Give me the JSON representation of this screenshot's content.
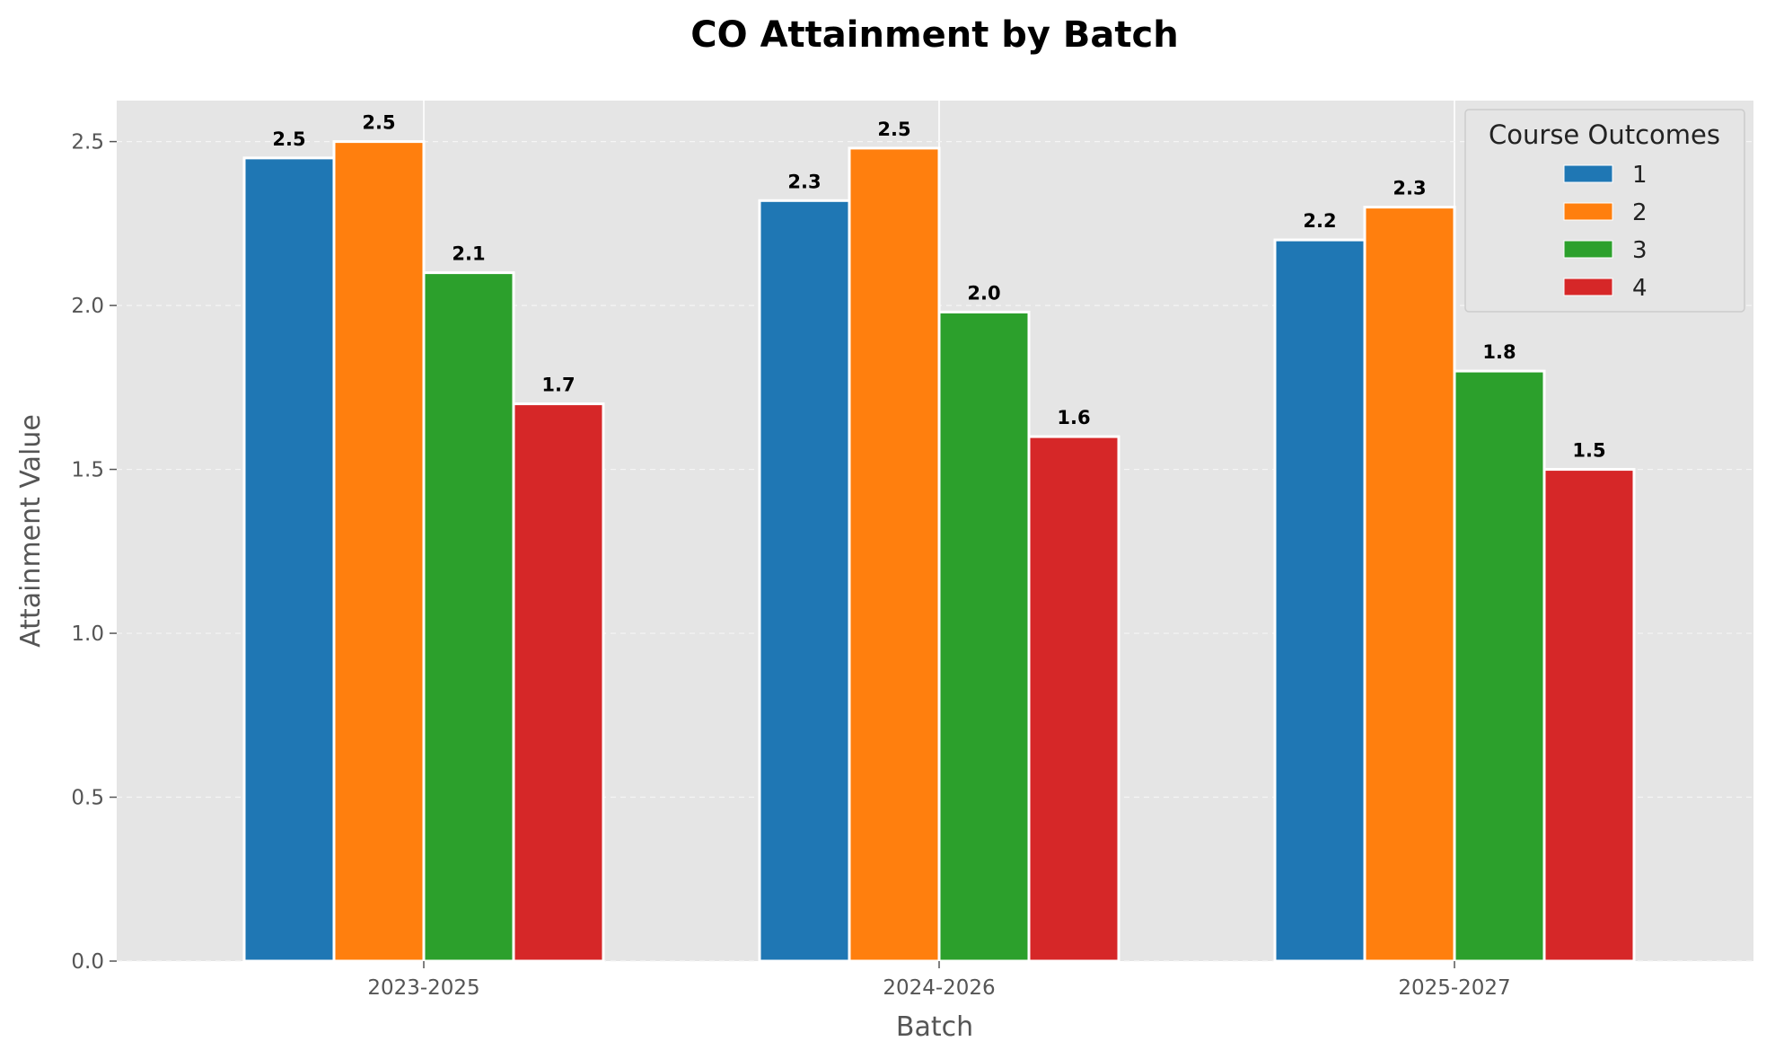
{
  "chart_data": {
    "type": "bar",
    "title": "CO Attainment by Batch",
    "xlabel": "Batch",
    "ylabel": "Attainment Value",
    "categories": [
      "2023-2025",
      "2024-2026",
      "2025-2027"
    ],
    "series": [
      {
        "name": "1",
        "values": [
          2.45,
          2.32,
          2.2
        ],
        "labels": [
          "2.5",
          "2.3",
          "2.2"
        ],
        "color": "#1f77b4"
      },
      {
        "name": "2",
        "values": [
          2.5,
          2.48,
          2.3
        ],
        "labels": [
          "2.5",
          "2.5",
          "2.3"
        ],
        "color": "#ff7f0e"
      },
      {
        "name": "3",
        "values": [
          2.1,
          1.98,
          1.8
        ],
        "labels": [
          "2.1",
          "2.0",
          "1.8"
        ],
        "color": "#2ca02c"
      },
      {
        "name": "4",
        "values": [
          1.7,
          1.6,
          1.5
        ],
        "labels": [
          "1.7",
          "1.6",
          "1.5"
        ],
        "color": "#d62728"
      }
    ],
    "ylim": [
      0,
      2.625
    ],
    "yticks": [
      "0.0",
      "0.5",
      "1.0",
      "1.5",
      "2.0",
      "2.5"
    ],
    "grid": true,
    "legend": {
      "title": "Course Outcomes",
      "position": "top-right"
    },
    "background_color": "#e5e5e5"
  }
}
